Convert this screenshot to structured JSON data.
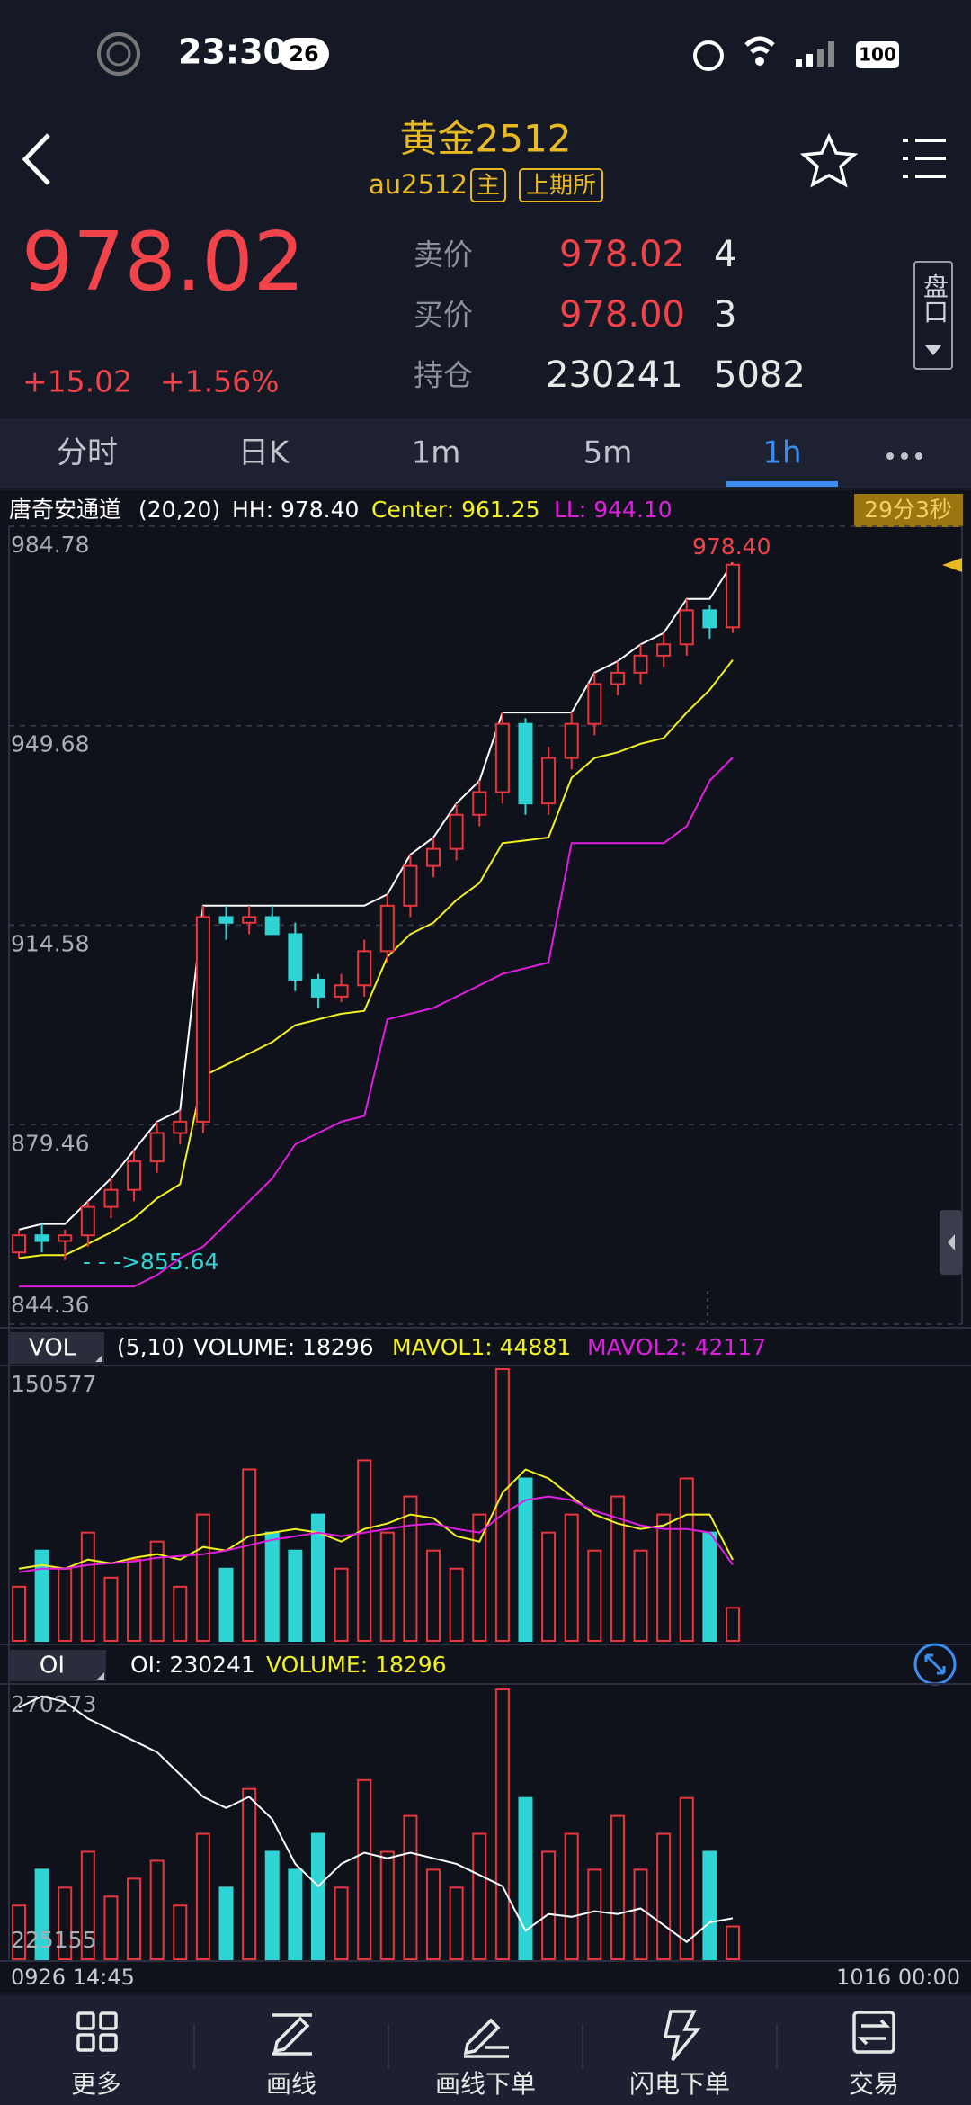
{
  "status_bar": {
    "time": "23:30",
    "badge": "26",
    "battery": "100"
  },
  "header": {
    "title": "黄金2512",
    "code": "au2512",
    "tag_main": "主",
    "tag_exchange": "上期所"
  },
  "quote": {
    "price": "978.02",
    "change": "+15.02",
    "change_pct": "+1.56%",
    "ask_label": "卖价",
    "ask": "978.02",
    "ask_vol": "4",
    "bid_label": "买价",
    "bid": "978.00",
    "bid_vol": "3",
    "oi_label": "持仓",
    "oi": "230241",
    "oi_change": "5082",
    "depth_button": "盘口"
  },
  "tabs": [
    "分时",
    "日K",
    "1m",
    "5m",
    "1h"
  ],
  "active_tab": 4,
  "chart_data": [
    {
      "type": "candlestick",
      "indicator": {
        "name": "唐奇安通道",
        "params": "(20,20)",
        "hh": "HH: 978.40",
        "center": "Center: 961.25",
        "ll": "LL: 944.10"
      },
      "timer": "29分3秒",
      "ylim": [
        844.36,
        984.78
      ],
      "yticks": [
        984.78,
        949.68,
        914.58,
        879.46,
        844.36
      ],
      "grid": true,
      "up_color": "#e8363c",
      "down_color": "#2fd4d4",
      "open": [
        857,
        860,
        859,
        860,
        865,
        868,
        873,
        878,
        880,
        916,
        915,
        916,
        913,
        905,
        902,
        904,
        910,
        918,
        925,
        928,
        934,
        938,
        950,
        936,
        944,
        950,
        957,
        959,
        962,
        964,
        970,
        967
      ],
      "high": [
        861,
        862,
        861,
        866,
        870,
        875,
        880,
        882,
        918,
        918,
        918,
        918,
        915,
        906,
        906,
        912,
        920,
        927,
        930,
        936,
        940,
        952,
        951,
        946,
        952,
        959,
        961,
        964,
        966,
        972,
        971,
        978.4
      ],
      "low": [
        856,
        857,
        855.64,
        858,
        863,
        866,
        871,
        876,
        878,
        912,
        913,
        913,
        903,
        900,
        901,
        902,
        908,
        916,
        923,
        926,
        932,
        936,
        934,
        934,
        942,
        948,
        955,
        957,
        960,
        962,
        965,
        966
      ],
      "close": [
        860,
        859,
        860,
        865,
        868,
        873,
        878,
        880,
        916,
        915,
        916,
        913,
        905,
        902,
        904,
        910,
        918,
        925,
        928,
        934,
        938,
        950,
        936,
        944,
        950,
        957,
        959,
        962,
        964,
        970,
        967,
        978.02
      ],
      "series": [
        {
          "color": "#ffffff",
          "values": [
            861,
            862,
            862,
            866,
            870,
            875,
            880,
            882,
            918,
            918,
            918,
            918,
            918,
            918,
            918,
            918,
            920,
            927,
            930,
            936,
            940,
            952,
            952,
            952,
            952,
            959,
            961,
            964,
            966,
            972,
            972,
            978.4
          ]
        },
        {
          "color": "#f2f21e",
          "values": [
            856,
            856.5,
            856.5,
            858.5,
            860.5,
            863,
            866.5,
            869,
            888,
            890,
            892,
            894,
            897,
            898,
            899,
            899.5,
            909,
            913,
            915,
            919,
            922,
            929,
            929.5,
            930,
            940.5,
            944,
            945,
            946.5,
            947.5,
            952,
            956,
            961.25
          ]
        },
        {
          "color": "#e01ee0",
          "values": [
            851,
            851,
            851,
            851,
            851,
            851,
            853,
            856,
            858,
            862,
            866,
            870,
            876,
            878,
            880,
            881,
            898,
            899,
            900,
            902,
            904,
            906,
            907,
            908,
            929,
            929,
            929,
            929,
            929,
            932,
            940,
            944.1
          ]
        }
      ],
      "annotations": {
        "high": "978.40",
        "low": "- - ->855.64"
      },
      "x_labels": [
        "0926 14:45",
        "1016 00:00"
      ]
    },
    {
      "type": "bar",
      "label": "VOL",
      "params": "(5,10)",
      "legend": {
        "volume": "VOLUME: 18296",
        "mavol1": "MAVOL1: 44881",
        "mavol2": "MAVOL2: 42117"
      },
      "ylim": [
        0,
        150577
      ],
      "yticks": [
        150577
      ],
      "values": [
        30000,
        50000,
        40000,
        60000,
        35000,
        45000,
        55000,
        30000,
        70000,
        40000,
        95000,
        60000,
        50000,
        70000,
        40000,
        100000,
        60000,
        80000,
        50000,
        40000,
        70000,
        150577,
        90000,
        60000,
        70000,
        50000,
        80000,
        50000,
        70000,
        90000,
        60000,
        18296
      ],
      "series": [
        {
          "color": "#f2f21e",
          "values": [
            40000,
            42000,
            40000,
            45000,
            43000,
            46000,
            48000,
            45000,
            52000,
            50000,
            58000,
            60000,
            62000,
            60000,
            55000,
            62000,
            65000,
            70000,
            68000,
            58000,
            55000,
            82000,
            95000,
            90000,
            80000,
            70000,
            65000,
            62000,
            64000,
            70000,
            70000,
            44881
          ]
        },
        {
          "color": "#e01ee0",
          "values": [
            38000,
            40000,
            40000,
            42000,
            43000,
            44000,
            46000,
            47000,
            48000,
            50000,
            53000,
            56000,
            58000,
            60000,
            58000,
            60000,
            62000,
            64000,
            65000,
            62000,
            60000,
            70000,
            78000,
            80000,
            78000,
            72000,
            68000,
            64000,
            62000,
            62000,
            60000,
            42117
          ]
        }
      ]
    },
    {
      "type": "bar_line",
      "label": "OI",
      "legend": {
        "oi": "OI: 230241",
        "volume": "VOLUME: 18296"
      },
      "ylim": [
        225155,
        270273
      ],
      "yticks": [
        270273,
        225155
      ],
      "line_color": "#ffffff",
      "values": [
        268000,
        270000,
        269000,
        266000,
        264000,
        262000,
        260000,
        256000,
        252000,
        250000,
        252000,
        248000,
        240000,
        236000,
        240000,
        242000,
        241000,
        242000,
        241000,
        240000,
        238000,
        236000,
        228000,
        231000,
        230500,
        231500,
        231000,
        232000,
        229000,
        226000,
        229500,
        230241
      ]
    }
  ],
  "nav": [
    "更多",
    "画线",
    "画线下单",
    "闪电下单",
    "交易"
  ]
}
